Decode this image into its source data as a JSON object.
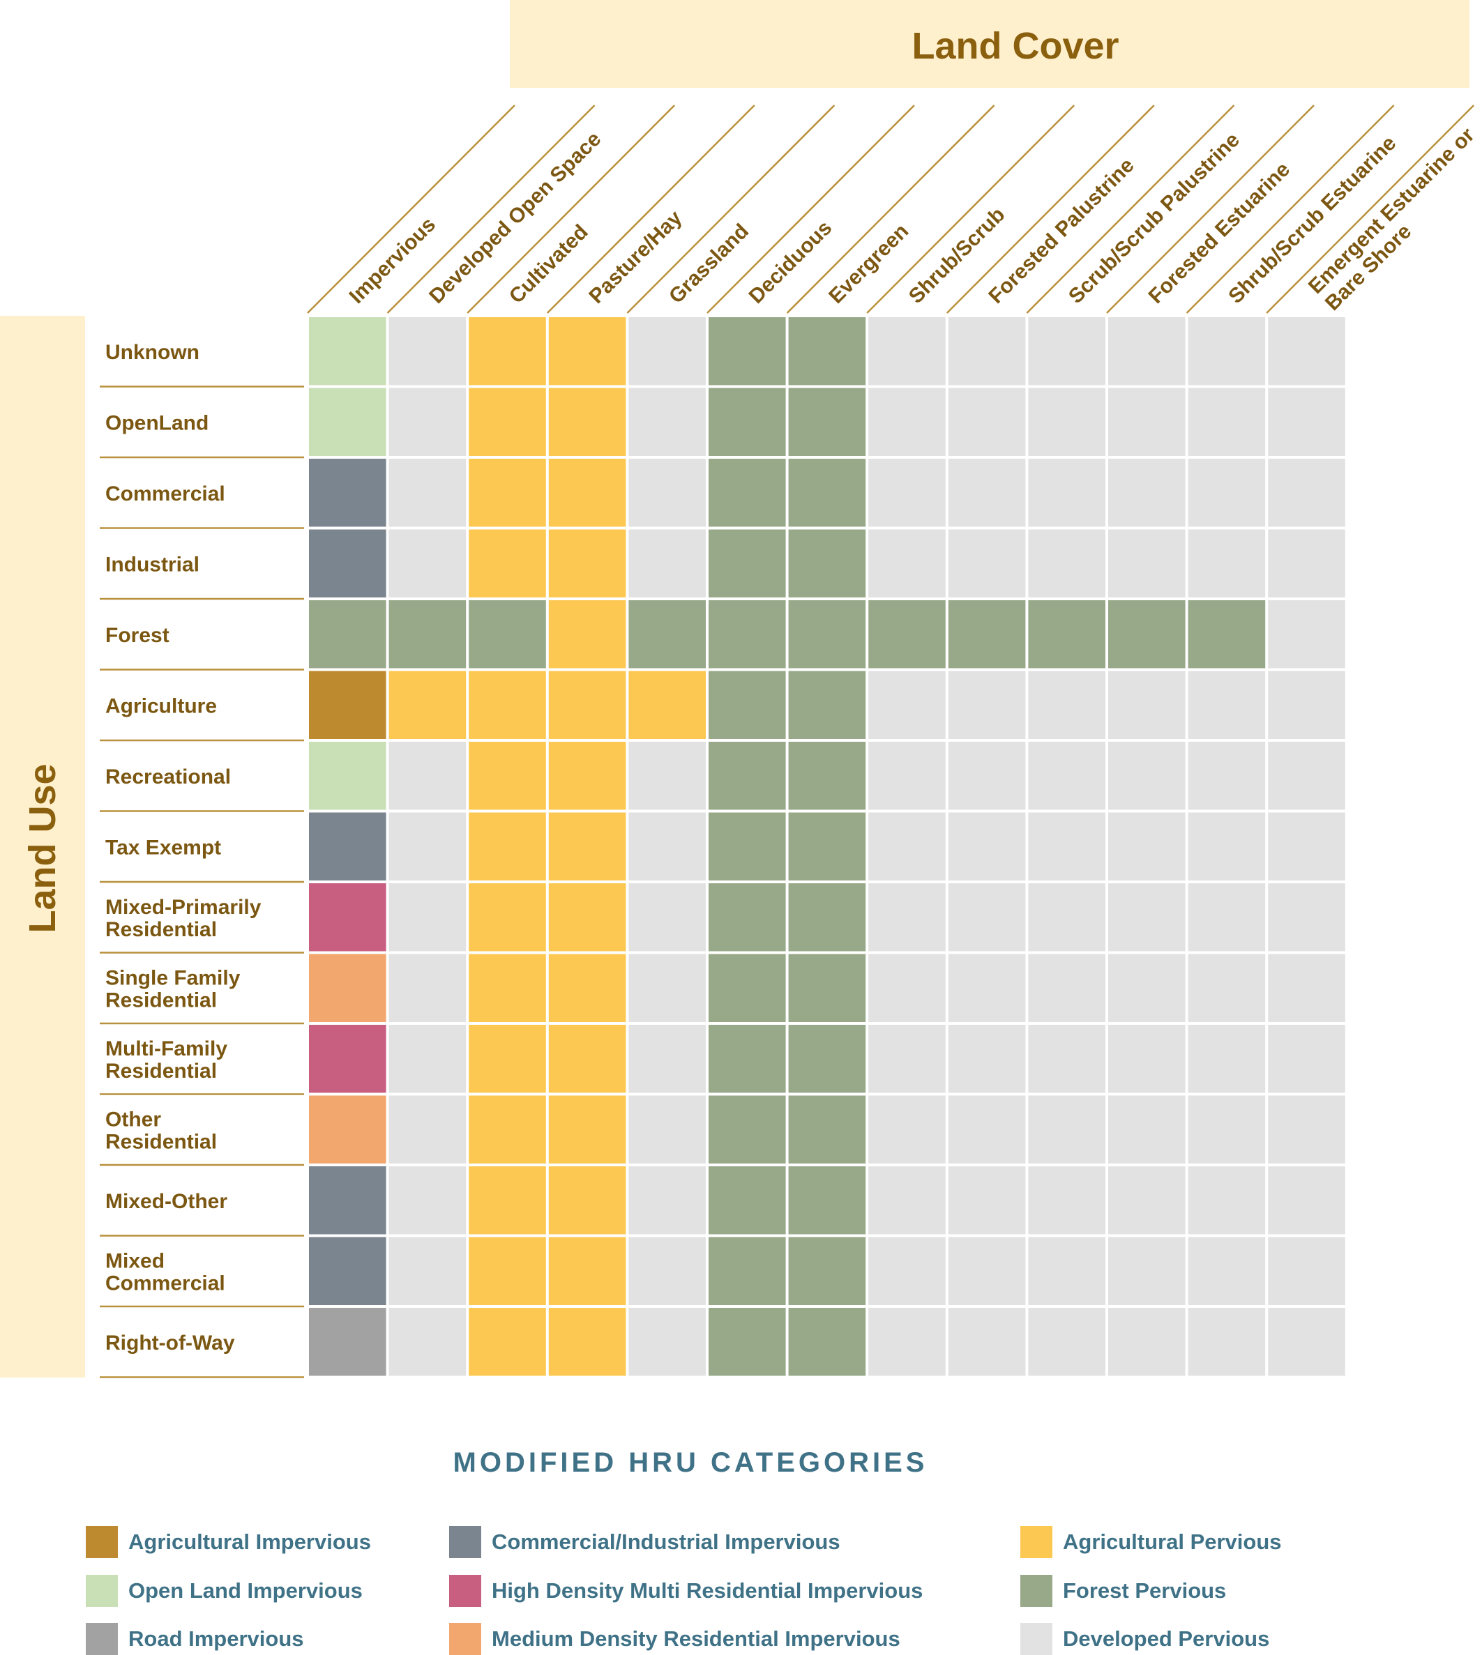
{
  "chart_data": {
    "type": "heatmap",
    "title": "",
    "column_header": "Land Cover",
    "row_header": "Land Use",
    "columns": [
      [
        "Impervious"
      ],
      [
        "Developed Open Space"
      ],
      [
        "Cultivated"
      ],
      [
        "Pasture/Hay"
      ],
      [
        "Grassland"
      ],
      [
        "Deciduous"
      ],
      [
        "Evergreen"
      ],
      [
        "Shrub/Scrub"
      ],
      [
        "Forested Palustrine"
      ],
      [
        "Scrub/Scrub Palustrine"
      ],
      [
        "Forested Estuarine"
      ],
      [
        "Shrub/Scrub Estuarine"
      ],
      [
        "Emergent Estuarine or",
        "Bare Shore"
      ]
    ],
    "rows": [
      [
        "Unknown"
      ],
      [
        "OpenLand"
      ],
      [
        "Commercial"
      ],
      [
        "Industrial"
      ],
      [
        "Forest"
      ],
      [
        "Agriculture"
      ],
      [
        "Recreational"
      ],
      [
        "Tax Exempt"
      ],
      [
        "Mixed-Primarily",
        "Residential"
      ],
      [
        "Single Family",
        "Residential"
      ],
      [
        "Multi-Family",
        "Residential"
      ],
      [
        "Other",
        "Residential"
      ],
      [
        "Mixed-Other"
      ],
      [
        "Mixed",
        "Commercial"
      ],
      [
        "Right-of-Way"
      ]
    ],
    "categories": {
      "AGI": {
        "label": "Agricultural Impervious",
        "color": "#be8a2f"
      },
      "CII": {
        "label": "Commercial/Industrial Impervious",
        "color": "#7a8590"
      },
      "AGP": {
        "label": "Agricultural Pervious",
        "color": "#fdc852"
      },
      "OLI": {
        "label": "Open Land Impervious",
        "color": "#c9e0b6"
      },
      "HDR": {
        "label": "High Density Multi Residential Impervious",
        "color": "#c85f80"
      },
      "FOR": {
        "label": "Forest Pervious",
        "color": "#98a989"
      },
      "RDI": {
        "label": "Road Impervious",
        "color": "#a2a2a2"
      },
      "MDR": {
        "label": "Medium Density Residential Impervious",
        "color": "#f2a76e"
      },
      "DEV": {
        "label": "Developed Pervious",
        "color": "#e2e2e2"
      }
    },
    "legend_title": "MODIFIED HRU CATEGORIES",
    "legend_order": [
      "AGI",
      "CII",
      "AGP",
      "OLI",
      "HDR",
      "FOR",
      "RDI",
      "MDR",
      "DEV"
    ],
    "grid": [
      [
        "OLI",
        "DEV",
        "AGP",
        "AGP",
        "DEV",
        "FOR",
        "FOR",
        "DEV",
        "DEV",
        "DEV",
        "DEV",
        "DEV",
        "DEV"
      ],
      [
        "OLI",
        "DEV",
        "AGP",
        "AGP",
        "DEV",
        "FOR",
        "FOR",
        "DEV",
        "DEV",
        "DEV",
        "DEV",
        "DEV",
        "DEV"
      ],
      [
        "CII",
        "DEV",
        "AGP",
        "AGP",
        "DEV",
        "FOR",
        "FOR",
        "DEV",
        "DEV",
        "DEV",
        "DEV",
        "DEV",
        "DEV"
      ],
      [
        "CII",
        "DEV",
        "AGP",
        "AGP",
        "DEV",
        "FOR",
        "FOR",
        "DEV",
        "DEV",
        "DEV",
        "DEV",
        "DEV",
        "DEV"
      ],
      [
        "FOR",
        "FOR",
        "FOR",
        "AGP",
        "FOR",
        "FOR",
        "FOR",
        "FOR",
        "FOR",
        "FOR",
        "FOR",
        "FOR",
        "DEV"
      ],
      [
        "AGI",
        "AGP",
        "AGP",
        "AGP",
        "AGP",
        "FOR",
        "FOR",
        "DEV",
        "DEV",
        "DEV",
        "DEV",
        "DEV",
        "DEV"
      ],
      [
        "OLI",
        "DEV",
        "AGP",
        "AGP",
        "DEV",
        "FOR",
        "FOR",
        "DEV",
        "DEV",
        "DEV",
        "DEV",
        "DEV",
        "DEV"
      ],
      [
        "CII",
        "DEV",
        "AGP",
        "AGP",
        "DEV",
        "FOR",
        "FOR",
        "DEV",
        "DEV",
        "DEV",
        "DEV",
        "DEV",
        "DEV"
      ],
      [
        "HDR",
        "DEV",
        "AGP",
        "AGP",
        "DEV",
        "FOR",
        "FOR",
        "DEV",
        "DEV",
        "DEV",
        "DEV",
        "DEV",
        "DEV"
      ],
      [
        "MDR",
        "DEV",
        "AGP",
        "AGP",
        "DEV",
        "FOR",
        "FOR",
        "DEV",
        "DEV",
        "DEV",
        "DEV",
        "DEV",
        "DEV"
      ],
      [
        "HDR",
        "DEV",
        "AGP",
        "AGP",
        "DEV",
        "FOR",
        "FOR",
        "DEV",
        "DEV",
        "DEV",
        "DEV",
        "DEV",
        "DEV"
      ],
      [
        "MDR",
        "DEV",
        "AGP",
        "AGP",
        "DEV",
        "FOR",
        "FOR",
        "DEV",
        "DEV",
        "DEV",
        "DEV",
        "DEV",
        "DEV"
      ],
      [
        "CII",
        "DEV",
        "AGP",
        "AGP",
        "DEV",
        "FOR",
        "FOR",
        "DEV",
        "DEV",
        "DEV",
        "DEV",
        "DEV",
        "DEV"
      ],
      [
        "CII",
        "DEV",
        "AGP",
        "AGP",
        "DEV",
        "FOR",
        "FOR",
        "DEV",
        "DEV",
        "DEV",
        "DEV",
        "DEV",
        "DEV"
      ],
      [
        "RDI",
        "DEV",
        "AGP",
        "AGP",
        "DEV",
        "FOR",
        "FOR",
        "DEV",
        "DEV",
        "DEV",
        "DEV",
        "DEV",
        "DEV"
      ]
    ]
  },
  "colors": {
    "header_band": "#fff0cd",
    "header_text": "#8a5f0d",
    "label_text": "#7b5712",
    "rule": "#b8913c",
    "legend_text": "#3f7287"
  }
}
